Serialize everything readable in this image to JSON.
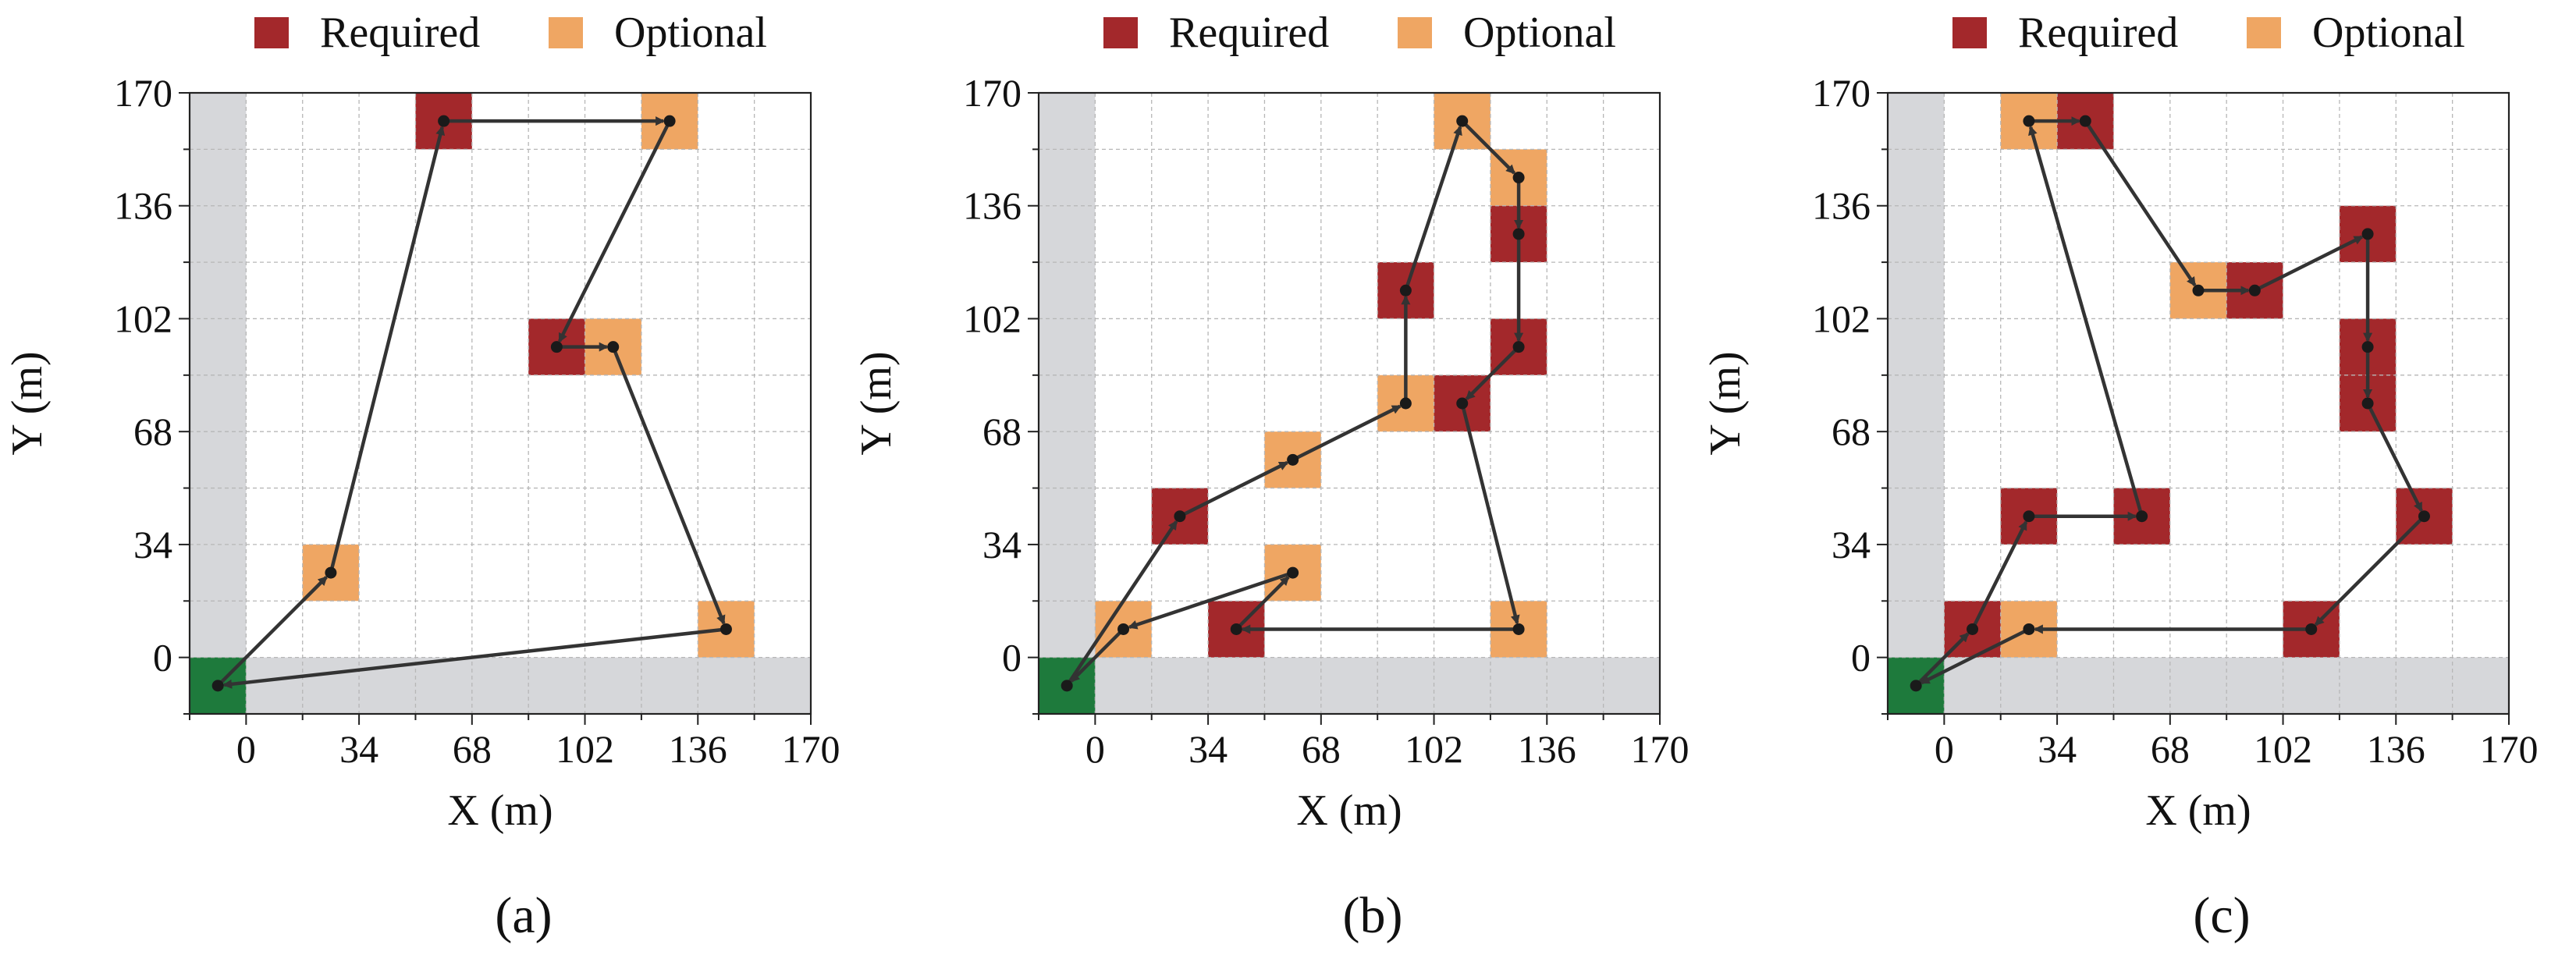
{
  "figure": {
    "panel_labels": [
      "(a)",
      "(b)",
      "(c)"
    ]
  },
  "colors": {
    "required": "#A3282B",
    "optional": "#EFA663",
    "depot": "#1E7A3C",
    "obstacle": "#D6D7DA",
    "grid": "#B7B7B7",
    "path": "#333333"
  },
  "chart_data": [
    {
      "type": "scatter",
      "subplot_label": "(a)",
      "xlabel": "X (m)",
      "ylabel": "Y (m)",
      "xlim": [
        -17,
        170
      ],
      "ylim": [
        -17,
        170
      ],
      "xticks": [
        0,
        34,
        68,
        102,
        136,
        170
      ],
      "yticks": [
        0,
        34,
        68,
        102,
        136,
        170
      ],
      "xticklabels": [
        "0",
        "34",
        "68",
        "102",
        "136",
        "170"
      ],
      "yticklabels": [
        "0",
        "34",
        "68",
        "102",
        "136",
        "170"
      ],
      "grid_step": 17,
      "grid": true,
      "legend": {
        "placement": "top",
        "entries": [
          {
            "label": "Required",
            "color": "#A3282B"
          },
          {
            "label": "Optional",
            "color": "#EFA663"
          }
        ]
      },
      "depot": [
        -8.5,
        -8.5
      ],
      "required_cells": [
        [
          59.5,
          161.5
        ],
        [
          93.5,
          93.5
        ]
      ],
      "optional_cells": [
        [
          127.5,
          161.5
        ],
        [
          110.5,
          93.5
        ],
        [
          25.5,
          25.5
        ],
        [
          144.5,
          8.5
        ]
      ],
      "path": [
        [
          -8.5,
          -8.5
        ],
        [
          25.5,
          25.5
        ],
        [
          59.5,
          161.5
        ],
        [
          127.5,
          161.5
        ],
        [
          93.5,
          93.5
        ],
        [
          110.5,
          93.5
        ],
        [
          144.5,
          8.5
        ],
        [
          -8.5,
          -8.5
        ]
      ]
    },
    {
      "type": "scatter",
      "subplot_label": "(b)",
      "xlabel": "X (m)",
      "ylabel": "Y (m)",
      "xlim": [
        -17,
        170
      ],
      "ylim": [
        -17,
        170
      ],
      "xticks": [
        0,
        34,
        68,
        102,
        136,
        170
      ],
      "yticks": [
        0,
        34,
        68,
        102,
        136,
        170
      ],
      "xticklabels": [
        "0",
        "34",
        "68",
        "102",
        "136",
        "170"
      ],
      "yticklabels": [
        "0",
        "34",
        "68",
        "102",
        "136",
        "170"
      ],
      "grid_step": 17,
      "grid": true,
      "legend": {
        "placement": "top",
        "entries": [
          {
            "label": "Required",
            "color": "#A3282B"
          },
          {
            "label": "Optional",
            "color": "#EFA663"
          }
        ]
      },
      "depot": [
        -8.5,
        -8.5
      ],
      "required_cells": [
        [
          25.5,
          42.5
        ],
        [
          93.5,
          110.5
        ],
        [
          110.5,
          76.5
        ],
        [
          127.5,
          127.5
        ],
        [
          127.5,
          93.5
        ],
        [
          42.5,
          8.5
        ]
      ],
      "optional_cells": [
        [
          8.5,
          8.5
        ],
        [
          59.5,
          59.5
        ],
        [
          93.5,
          76.5
        ],
        [
          110.5,
          161.5
        ],
        [
          127.5,
          144.5
        ],
        [
          127.5,
          8.5
        ],
        [
          59.5,
          25.5
        ]
      ],
      "path": [
        [
          -8.5,
          -8.5
        ],
        [
          25.5,
          42.5
        ],
        [
          59.5,
          59.5
        ],
        [
          93.5,
          76.5
        ],
        [
          93.5,
          110.5
        ],
        [
          110.5,
          161.5
        ],
        [
          127.5,
          144.5
        ],
        [
          127.5,
          127.5
        ],
        [
          127.5,
          93.5
        ],
        [
          110.5,
          76.5
        ],
        [
          127.5,
          8.5
        ],
        [
          42.5,
          8.5
        ],
        [
          59.5,
          25.5
        ],
        [
          8.5,
          8.5
        ],
        [
          -8.5,
          -8.5
        ]
      ]
    },
    {
      "type": "scatter",
      "subplot_label": "(c)",
      "xlabel": "X (m)",
      "ylabel": "Y (m)",
      "xlim": [
        -17,
        170
      ],
      "ylim": [
        -17,
        170
      ],
      "xticks": [
        0,
        34,
        68,
        102,
        136,
        170
      ],
      "yticks": [
        0,
        34,
        68,
        102,
        136,
        170
      ],
      "xticklabels": [
        "0",
        "34",
        "68",
        "102",
        "136",
        "170"
      ],
      "yticklabels": [
        "0",
        "34",
        "68",
        "102",
        "136",
        "170"
      ],
      "grid_step": 17,
      "grid": true,
      "legend": {
        "placement": "top",
        "entries": [
          {
            "label": "Required",
            "color": "#A3282B"
          },
          {
            "label": "Optional",
            "color": "#EFA663"
          }
        ]
      },
      "depot": [
        -8.5,
        -8.5
      ],
      "required_cells": [
        [
          8.5,
          8.5
        ],
        [
          25.5,
          42.5
        ],
        [
          59.5,
          42.5
        ],
        [
          42.5,
          161.5
        ],
        [
          93.5,
          110.5
        ],
        [
          127.5,
          127.5
        ],
        [
          127.5,
          93.5
        ],
        [
          127.5,
          76.5
        ],
        [
          144.5,
          42.5
        ],
        [
          110.5,
          8.5
        ]
      ],
      "optional_cells": [
        [
          25.5,
          8.5
        ],
        [
          25.5,
          161.5
        ],
        [
          76.5,
          110.5
        ]
      ],
      "path": [
        [
          -8.5,
          -8.5
        ],
        [
          8.5,
          8.5
        ],
        [
          25.5,
          42.5
        ],
        [
          59.5,
          42.5
        ],
        [
          25.5,
          161.5
        ],
        [
          42.5,
          161.5
        ],
        [
          76.5,
          110.5
        ],
        [
          93.5,
          110.5
        ],
        [
          127.5,
          127.5
        ],
        [
          127.5,
          93.5
        ],
        [
          127.5,
          76.5
        ],
        [
          144.5,
          42.5
        ],
        [
          110.5,
          8.5
        ],
        [
          25.5,
          8.5
        ],
        [
          -8.5,
          -8.5
        ]
      ]
    }
  ]
}
